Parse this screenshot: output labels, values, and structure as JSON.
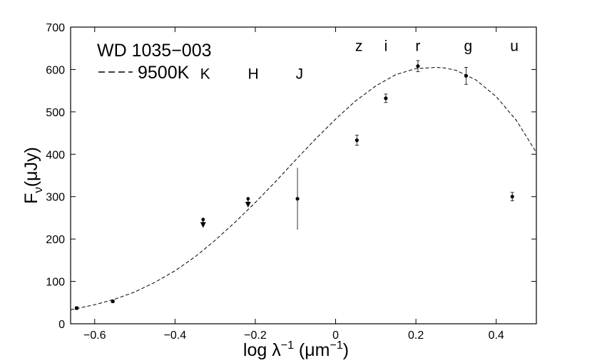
{
  "chart_data": {
    "type": "scatter",
    "title": "",
    "xlabel": {
      "base": "log λ",
      "sup1": "−1",
      "unit_open": " (μm",
      "sup2": "−1",
      "unit_close": ")"
    },
    "ylabel": {
      "main": "F",
      "sub": "ν",
      "rest": "(μJy)"
    },
    "xlim": [
      -0.66,
      0.5
    ],
    "ylim": [
      0,
      700
    ],
    "x_ticks": [
      -0.6,
      -0.4,
      -0.2,
      0,
      0.2,
      0.4
    ],
    "x_tick_labels": [
      "−0.6",
      "−0.4",
      "−0.2",
      "0",
      "0.2",
      "0.4"
    ],
    "y_ticks": [
      0,
      100,
      200,
      300,
      400,
      500,
      600,
      700
    ],
    "y_tick_labels": [
      "0",
      "100",
      "200",
      "300",
      "400",
      "500",
      "600",
      "700"
    ],
    "grid": false,
    "legend": {
      "placement": "top-left",
      "object_name": "WD 1035−003",
      "model_line": "9500K"
    },
    "band_labels": [
      {
        "text": "K",
        "x": -0.325,
        "y": 590
      },
      {
        "text": "H",
        "x": -0.205,
        "y": 590
      },
      {
        "text": "J",
        "x": -0.09,
        "y": 590
      },
      {
        "text": "z",
        "x": 0.058,
        "y": 655
      },
      {
        "text": "i",
        "x": 0.125,
        "y": 655
      },
      {
        "text": "r",
        "x": 0.205,
        "y": 655
      },
      {
        "text": "g",
        "x": 0.33,
        "y": 655
      },
      {
        "text": "u",
        "x": 0.445,
        "y": 655
      }
    ],
    "points": [
      {
        "x": -0.645,
        "y": 37,
        "err": 3
      },
      {
        "x": -0.555,
        "y": 53,
        "err": 3
      },
      {
        "x": 0.053,
        "y": 433,
        "err": 12
      },
      {
        "x": 0.125,
        "y": 532,
        "err": 10
      },
      {
        "x": 0.205,
        "y": 608,
        "err": 13
      },
      {
        "x": 0.325,
        "y": 585,
        "err": 20
      },
      {
        "x": 0.44,
        "y": 300,
        "err": 10
      }
    ],
    "j_point": {
      "x": -0.095,
      "y": 295,
      "err_low": 222,
      "err_high": 368
    },
    "upper_limits": [
      {
        "x": -0.33,
        "y": 246,
        "arrow_to": 228
      },
      {
        "x": -0.218,
        "y": 295,
        "arrow_to": 276
      }
    ],
    "model_curve": {
      "name": "9500K",
      "style": "dashed",
      "x": [
        -0.66,
        -0.6,
        -0.55,
        -0.5,
        -0.45,
        -0.4,
        -0.35,
        -0.3,
        -0.25,
        -0.2,
        -0.15,
        -0.1,
        -0.05,
        0.0,
        0.05,
        0.1,
        0.15,
        0.2,
        0.25,
        0.27,
        0.3,
        0.35,
        0.4,
        0.45,
        0.5
      ],
      "y": [
        33,
        45,
        58,
        75,
        98,
        125,
        158,
        197,
        240,
        286,
        335,
        386,
        436,
        483,
        526,
        561,
        588,
        602,
        605,
        604,
        598,
        575,
        536,
        480,
        404
      ]
    }
  }
}
